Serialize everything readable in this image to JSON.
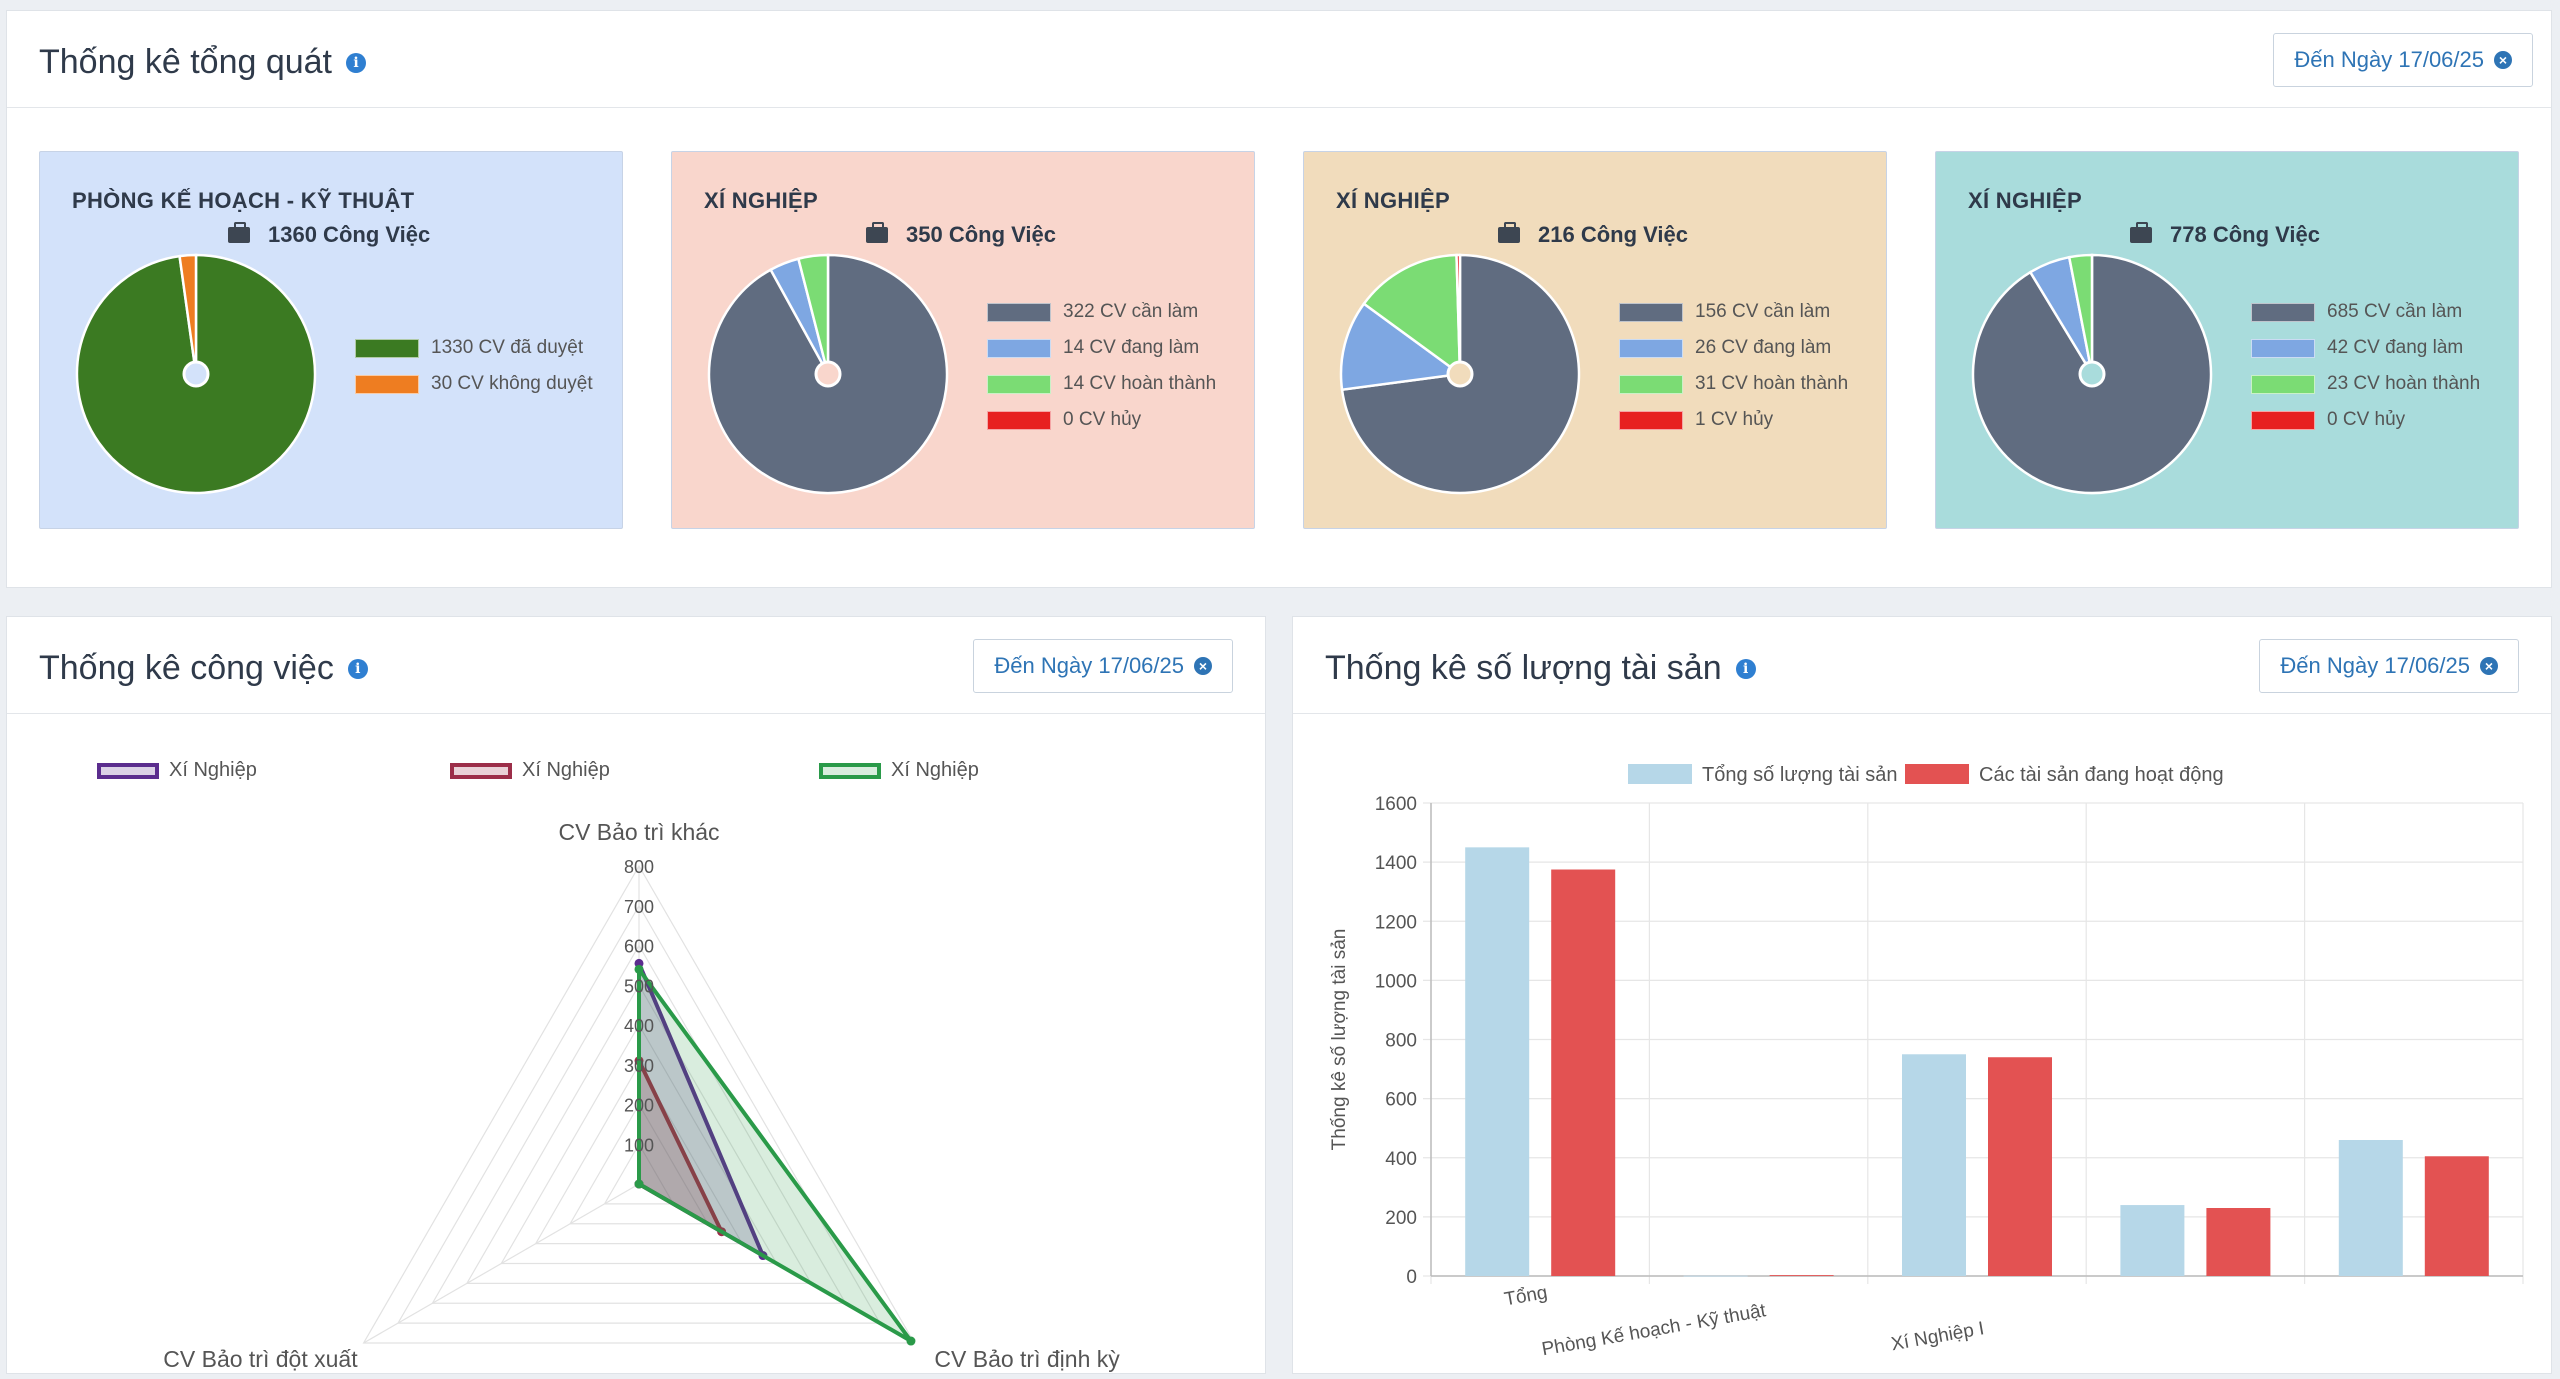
{
  "overview": {
    "title": "Thống kê tổng quát",
    "date_label": "Đến Ngày 17/06/25",
    "cards": [
      {
        "title": "PHÒNG KẾ HOẠCH - KỸ THUẬT",
        "count_label": "1360 Công Việc",
        "bg": "#d3e2fa",
        "slices": [
          {
            "label": "1330 CV đã duyệt",
            "value": 1330,
            "color": "#3b7a22"
          },
          {
            "label": "30 CV không duyệt",
            "value": 30,
            "color": "#ee7d21"
          }
        ]
      },
      {
        "title": "XÍ NGHIỆP",
        "count_label": "350 Công Việc",
        "bg": "#f9d6cc",
        "slices": [
          {
            "label": "322 CV cần làm",
            "value": 322,
            "color": "#606c80"
          },
          {
            "label": "14 CV đang làm",
            "value": 14,
            "color": "#7ea7e2"
          },
          {
            "label": "14 CV hoàn thành",
            "value": 14,
            "color": "#7bdc74"
          },
          {
            "label": "0 CV hủy",
            "value": 0,
            "color": "#e72020"
          }
        ]
      },
      {
        "title": "XÍ NGHIỆP",
        "count_label": "216 Công Việc",
        "bg": "#f1dcbc",
        "slices": [
          {
            "label": "156 CV cần làm",
            "value": 156,
            "color": "#606c80"
          },
          {
            "label": "26 CV đang làm",
            "value": 26,
            "color": "#7ea7e2"
          },
          {
            "label": "31 CV hoàn thành",
            "value": 31,
            "color": "#7bdc74"
          },
          {
            "label": "1 CV hủy",
            "value": 1,
            "color": "#e72020"
          }
        ]
      },
      {
        "title": "XÍ NGHIỆP",
        "count_label": "778 Công Việc",
        "bg": "#a9dcdc",
        "slices": [
          {
            "label": "685 CV cần làm",
            "value": 685,
            "color": "#606c80"
          },
          {
            "label": "42 CV đang làm",
            "value": 42,
            "color": "#7ea7e2"
          },
          {
            "label": "23 CV hoàn thành",
            "value": 23,
            "color": "#7bdc74"
          },
          {
            "label": "0 CV hủy",
            "value": 0,
            "color": "#e72020"
          }
        ]
      }
    ]
  },
  "work_stats": {
    "title": "Thống kê công việc",
    "date_label": "Đến Ngày 17/06/25"
  },
  "asset_stats": {
    "title": "Thống kê số lượng tài sản",
    "date_label": "Đến Ngày 17/06/25"
  },
  "chart_data": [
    {
      "type": "radar",
      "axes": [
        "CV Bảo trì khác",
        "CV Bảo trì định kỳ",
        "CV Bảo trì đột xuất"
      ],
      "rmax": 800,
      "ticks": [
        100,
        200,
        300,
        400,
        500,
        600,
        700,
        800
      ],
      "series": [
        {
          "name": "Xí Nghiệp",
          "values": [
            555,
            360,
            0
          ],
          "color": "#5b2d8e",
          "fill": "rgba(91,45,142,0.22)"
        },
        {
          "name": "Xí Nghiệp",
          "values": [
            310,
            240,
            0
          ],
          "color": "#9c2e49",
          "fill": "rgba(156,46,73,0.22)"
        },
        {
          "name": "Xí Nghiệp",
          "values": [
            540,
            790,
            0
          ],
          "color": "#2a9a49",
          "fill": "rgba(42,154,73,0.18)"
        }
      ]
    },
    {
      "type": "bar",
      "ylabel": "Thống kê số lượng tài sản",
      "ylim": [
        0,
        1600
      ],
      "yticks": [
        0,
        200,
        400,
        600,
        800,
        1000,
        1200,
        1400,
        1600
      ],
      "categories": [
        "Tổng",
        "Phòng Kế hoạch - Kỹ thuật",
        "Xí Nghiệp I",
        "",
        ""
      ],
      "series": [
        {
          "name": "Tổng số lượng tài sản",
          "values": [
            1450,
            1,
            750,
            240,
            460
          ],
          "color": "#b6d7e8"
        },
        {
          "name": "Các tài sản đang hoạt động",
          "values": [
            1375,
            3,
            740,
            230,
            405
          ],
          "color": "#e35252"
        }
      ]
    }
  ]
}
